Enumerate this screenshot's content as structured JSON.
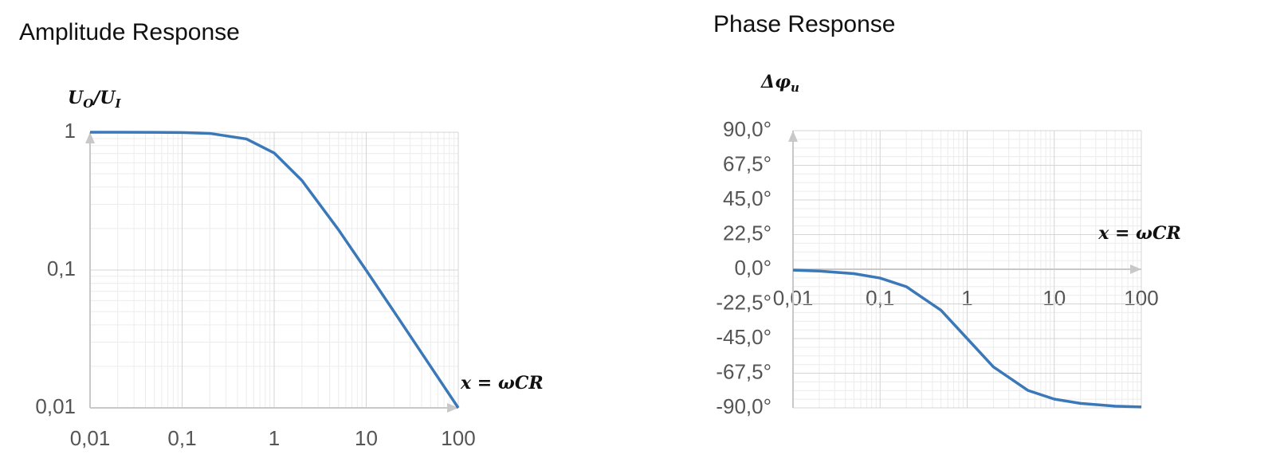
{
  "chart_data": [
    {
      "type": "line",
      "title": "Amplitude Response",
      "ylabel": [
        "U",
        "O",
        "/U",
        "I"
      ],
      "xlabel": "x = ωCR",
      "xlog": true,
      "ylog": true,
      "grid": true,
      "x": [
        0.01,
        0.02,
        0.05,
        0.1,
        0.2,
        0.5,
        1,
        2,
        5,
        10,
        20,
        50,
        100
      ],
      "series": [
        {
          "color": "#3a78b8",
          "values": [
            1.0,
            1.0,
            0.999,
            0.995,
            0.981,
            0.894,
            0.707,
            0.447,
            0.196,
            0.0995,
            0.05,
            0.02,
            0.01
          ]
        }
      ],
      "xlim": [
        0.01,
        100
      ],
      "ylim": [
        0.01,
        1
      ],
      "xticks": [
        {
          "value": 0.01,
          "label": "0,01"
        },
        {
          "value": 0.1,
          "label": "0,1"
        },
        1,
        10,
        100
      ],
      "yticks": [
        {
          "value": 0.01,
          "label": "0,01"
        },
        {
          "value": 0.1,
          "label": "0,1"
        },
        1
      ]
    },
    {
      "type": "line",
      "title": "Phase Response",
      "ylabel": [
        "Δφ",
        "u"
      ],
      "xlabel": "x = ωCR",
      "xlog": true,
      "ylog": false,
      "grid": true,
      "x": [
        0.01,
        0.02,
        0.05,
        0.1,
        0.2,
        0.5,
        1,
        2,
        5,
        10,
        20,
        50,
        100
      ],
      "series": [
        {
          "color": "#3a78b8",
          "values": [
            -0.57,
            -1.15,
            -2.86,
            -5.71,
            -11.3,
            -26.6,
            -45,
            -63.4,
            -78.7,
            -84.3,
            -87.1,
            -88.9,
            -89.4
          ]
        }
      ],
      "xlim": [
        0.01,
        100
      ],
      "ylim": [
        -90,
        90
      ],
      "xticks": [
        {
          "value": 0.01,
          "label": "0,01"
        },
        {
          "value": 0.1,
          "label": "0,1"
        },
        1,
        10,
        100
      ],
      "yticks": [
        {
          "value": 90,
          "label": "90,0°"
        },
        {
          "value": 67.5,
          "label": "67,5°"
        },
        {
          "value": 45,
          "label": "45,0°"
        },
        {
          "value": 22.5,
          "label": "22,5°"
        },
        {
          "value": 0,
          "label": "0,0°"
        },
        {
          "value": -22.5,
          "label": "-22,5°"
        },
        {
          "value": -45,
          "label": "-45,0°"
        },
        {
          "value": -67.5,
          "label": "-67,5°"
        },
        {
          "value": -90,
          "label": "-90,0°"
        }
      ]
    }
  ]
}
